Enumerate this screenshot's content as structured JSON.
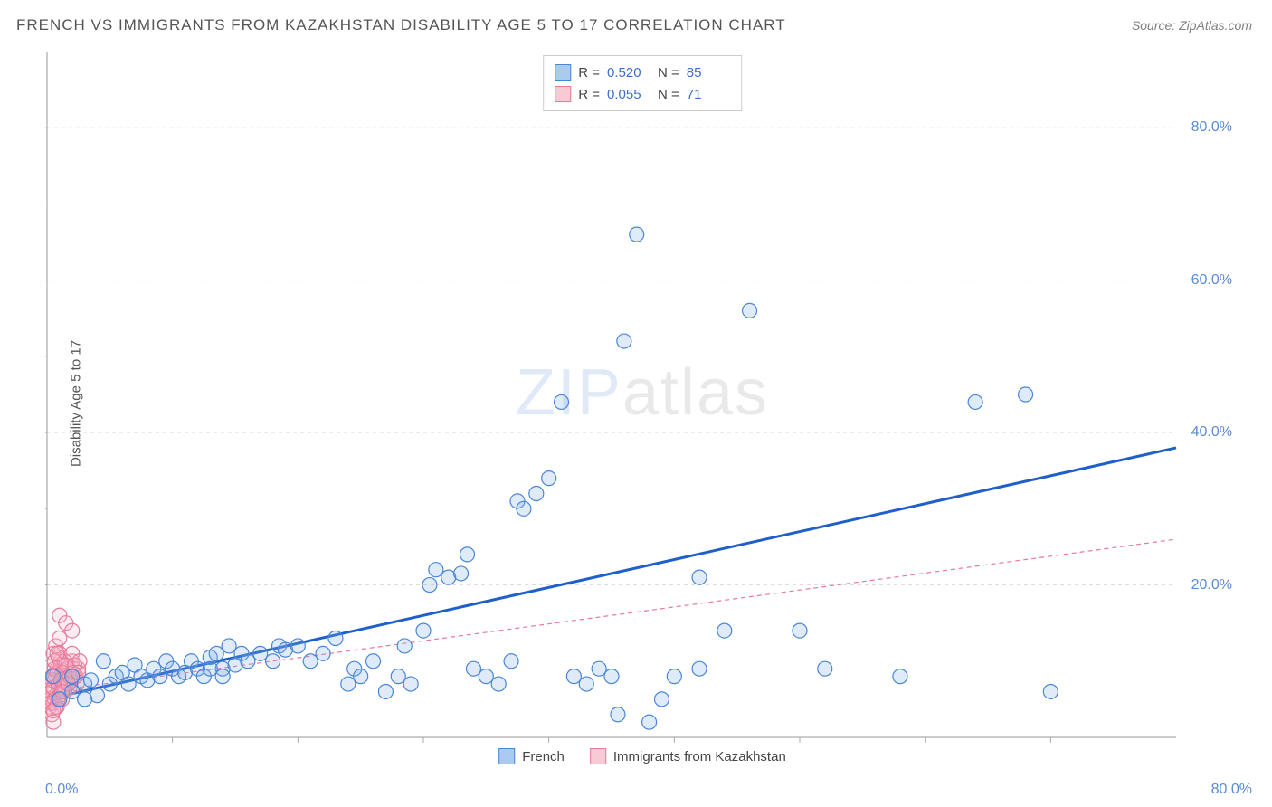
{
  "title": "FRENCH VS IMMIGRANTS FROM KAZAKHSTAN DISABILITY AGE 5 TO 17 CORRELATION CHART",
  "source": "Source: ZipAtlas.com",
  "ylabel": "Disability Age 5 to 17",
  "watermark": {
    "zip": "ZIP",
    "atlas": "atlas"
  },
  "chart": {
    "type": "scatter",
    "xlim": [
      0,
      90
    ],
    "ylim": [
      0,
      90
    ],
    "x_axis_visible_max": 80,
    "y_axis_visible_max": 80,
    "background_color": "#ffffff",
    "grid_color": "#dddddd",
    "grid_dash": "4,4",
    "axis_color": "#999999",
    "tick_color": "#aaaaaa",
    "tick_label_color": "#5b8bd4",
    "grid_y_values": [
      20,
      40,
      60,
      80
    ],
    "tick_x_minor_step": 10,
    "tick_y_minor_step": 10,
    "xtick_labels": [
      {
        "value": 0,
        "label": "0.0%"
      },
      {
        "value": 80,
        "label": "80.0%"
      }
    ],
    "ytick_labels": [
      {
        "value": 20,
        "label": "20.0%"
      },
      {
        "value": 40,
        "label": "40.0%"
      },
      {
        "value": 60,
        "label": "60.0%"
      },
      {
        "value": 80,
        "label": "80.0%"
      }
    ],
    "marker_radius": 8,
    "marker_stroke_width": 1.2,
    "marker_fill_opacity": 0.25,
    "series": [
      {
        "name": "French",
        "fill": "#7fb0e8",
        "stroke": "#4a86d8",
        "points": [
          [
            1,
            5
          ],
          [
            2,
            6
          ],
          [
            3,
            7
          ],
          [
            3.5,
            7.5
          ],
          [
            4,
            5.5
          ],
          [
            4.5,
            10
          ],
          [
            5,
            7
          ],
          [
            5.5,
            8
          ],
          [
            6,
            8.5
          ],
          [
            6.5,
            7
          ],
          [
            7,
            9.5
          ],
          [
            7.5,
            8
          ],
          [
            8,
            7.5
          ],
          [
            8.5,
            9
          ],
          [
            9,
            8
          ],
          [
            9.5,
            10
          ],
          [
            10,
            9
          ],
          [
            10.5,
            8
          ],
          [
            11,
            8.5
          ],
          [
            11.5,
            10
          ],
          [
            12,
            9
          ],
          [
            12.5,
            8
          ],
          [
            13,
            10.5
          ],
          [
            13.5,
            11
          ],
          [
            14,
            9
          ],
          [
            14.5,
            12
          ],
          [
            15,
            9.5
          ],
          [
            15.5,
            11
          ],
          [
            16,
            10
          ],
          [
            17,
            11
          ],
          [
            18,
            10
          ],
          [
            18.5,
            12
          ],
          [
            19,
            11.5
          ],
          [
            20,
            12
          ],
          [
            21,
            10
          ],
          [
            22,
            11
          ],
          [
            23,
            13
          ],
          [
            24,
            7
          ],
          [
            24.5,
            9
          ],
          [
            25,
            8
          ],
          [
            26,
            10
          ],
          [
            27,
            6
          ],
          [
            28,
            8
          ],
          [
            28.5,
            12
          ],
          [
            29,
            7
          ],
          [
            30,
            14
          ],
          [
            30.5,
            20
          ],
          [
            31,
            22
          ],
          [
            32,
            21
          ],
          [
            33,
            21.5
          ],
          [
            33.5,
            24
          ],
          [
            34,
            9
          ],
          [
            35,
            8
          ],
          [
            36,
            7
          ],
          [
            37,
            10
          ],
          [
            37.5,
            31
          ],
          [
            38,
            30
          ],
          [
            39,
            32
          ],
          [
            40,
            34
          ],
          [
            41,
            44
          ],
          [
            42,
            8
          ],
          [
            43,
            7
          ],
          [
            44,
            9
          ],
          [
            45,
            8
          ],
          [
            45.5,
            3
          ],
          [
            46,
            52
          ],
          [
            47,
            66
          ],
          [
            48,
            2
          ],
          [
            49,
            5
          ],
          [
            50,
            8
          ],
          [
            52,
            21
          ],
          [
            54,
            14
          ],
          [
            56,
            56
          ],
          [
            60,
            14
          ],
          [
            62,
            9
          ],
          [
            68,
            8
          ],
          [
            74,
            44
          ],
          [
            78,
            45
          ],
          [
            80,
            6
          ],
          [
            52,
            9
          ],
          [
            13,
            9
          ],
          [
            14,
            8
          ],
          [
            2,
            8
          ],
          [
            3,
            5
          ],
          [
            0.5,
            8
          ]
        ],
        "trend": {
          "x1": 0,
          "y1": 5,
          "x2": 90,
          "y2": 38,
          "stroke": "#1e5fc9",
          "width": 3,
          "dash": null
        }
      },
      {
        "name": "Immigrants from Kazakhstan",
        "fill": "#f7b8c8",
        "stroke": "#e77a9a",
        "points": [
          [
            0.2,
            4
          ],
          [
            0.5,
            6
          ],
          [
            0.7,
            8
          ],
          [
            0.3,
            5
          ],
          [
            0.8,
            9
          ],
          [
            1,
            7
          ],
          [
            1.1,
            10
          ],
          [
            0.4,
            3
          ],
          [
            0.6,
            7.5
          ],
          [
            0.9,
            6.5
          ],
          [
            1.2,
            8
          ],
          [
            1.3,
            9.5
          ],
          [
            0.5,
            4.5
          ],
          [
            0.7,
            5.5
          ],
          [
            1,
            11
          ],
          [
            1.4,
            8.5
          ],
          [
            0.3,
            6
          ],
          [
            0.6,
            9
          ],
          [
            0.8,
            4
          ],
          [
            1.1,
            6
          ],
          [
            1.5,
            7
          ],
          [
            1.6,
            8.5
          ],
          [
            0.4,
            7.5
          ],
          [
            0.9,
            10.5
          ],
          [
            1.2,
            5
          ],
          [
            1.7,
            9
          ],
          [
            2,
            10
          ],
          [
            2.2,
            8
          ],
          [
            0.5,
            11
          ],
          [
            0.7,
            12
          ],
          [
            1,
            13
          ],
          [
            1.3,
            7
          ],
          [
            1.8,
            6.5
          ],
          [
            2.1,
            9
          ],
          [
            0.6,
            5
          ],
          [
            0.8,
            8.5
          ],
          [
            1.1,
            9.5
          ],
          [
            1.4,
            10
          ],
          [
            1.9,
            7.5
          ],
          [
            2.3,
            8
          ],
          [
            2.5,
            9
          ],
          [
            0.3,
            4.5
          ],
          [
            0.5,
            6.5
          ],
          [
            0.9,
            7
          ],
          [
            1.2,
            8.5
          ],
          [
            1.5,
            9.5
          ],
          [
            2,
            11
          ],
          [
            2.4,
            7
          ],
          [
            0.7,
            4
          ],
          [
            1,
            5.5
          ],
          [
            1.3,
            6.5
          ],
          [
            1.6,
            7.5
          ],
          [
            2.1,
            8.5
          ],
          [
            0.4,
            8
          ],
          [
            0.6,
            10
          ],
          [
            0.8,
            11
          ],
          [
            1.1,
            7.5
          ],
          [
            1.4,
            6
          ],
          [
            1.8,
            8
          ],
          [
            2.2,
            9.5
          ],
          [
            2.6,
            10
          ],
          [
            0.5,
            3.5
          ],
          [
            0.9,
            5
          ],
          [
            1.2,
            6
          ],
          [
            1.7,
            7
          ],
          [
            2,
            8
          ],
          [
            2.5,
            8.5
          ],
          [
            1,
            16
          ],
          [
            1.5,
            15
          ],
          [
            2,
            14
          ],
          [
            0.5,
            2
          ]
        ],
        "trend": {
          "x1": 0,
          "y1": 6,
          "x2": 90,
          "y2": 26,
          "stroke": "#e77a9a",
          "width": 1.2,
          "dash": "5,4"
        }
      }
    ]
  },
  "stats": [
    {
      "swatch_fill": "#a9cbef",
      "swatch_stroke": "#4a86d8",
      "r": "0.520",
      "n": "85"
    },
    {
      "swatch_fill": "#f9c9d6",
      "swatch_stroke": "#e77a9a",
      "r": "0.055",
      "n": "71"
    }
  ],
  "bottom_legend": [
    {
      "swatch_fill": "#a9cbef",
      "swatch_stroke": "#4a86d8",
      "label": "French"
    },
    {
      "swatch_fill": "#f9c9d6",
      "swatch_stroke": "#e77a9a",
      "label": "Immigrants from Kazakhstan"
    }
  ],
  "stats_labels": {
    "r_prefix": "R  =",
    "n_prefix": "N  ="
  }
}
